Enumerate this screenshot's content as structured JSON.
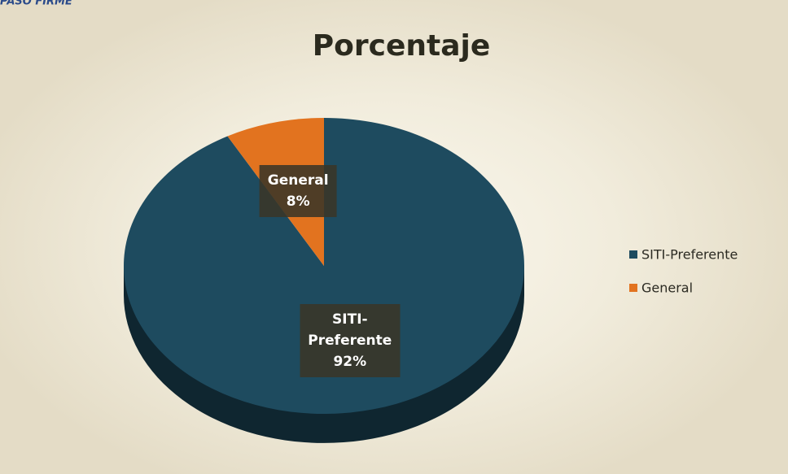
{
  "page_header": "PASO FIRME",
  "chart_data": {
    "type": "pie",
    "title": "Porcentaje",
    "categories": [
      "SITI-Preferente",
      "General"
    ],
    "values": [
      92,
      8
    ],
    "value_labels": [
      "92%",
      "8%"
    ],
    "colors": [
      "#1e4b5f",
      "#e2731f"
    ],
    "legend": "right"
  }
}
